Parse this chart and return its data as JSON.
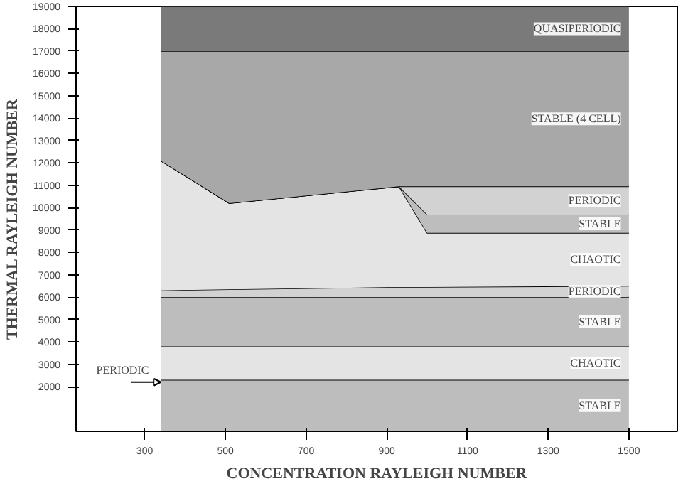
{
  "chart_data": {
    "type": "area",
    "stacked": true,
    "xlabel": "CONCENTRATION RAYLEIGH NUMBER",
    "ylabel": "THERMAL RAYLEIGH NUMBER",
    "x": [
      340,
      510,
      930,
      1000,
      1500
    ],
    "series": [
      {
        "name": "STABLE",
        "color": "#bdbdbd",
        "values": [
          2300,
          2300,
          2300,
          2300,
          2300
        ]
      },
      {
        "name": "CHAOTIC",
        "color": "#e4e4e4",
        "values": [
          1500,
          1500,
          1500,
          1500,
          1500
        ]
      },
      {
        "name": "STABLE",
        "color": "#bdbdbd",
        "values": [
          2200,
          2200,
          2200,
          2200,
          2200
        ]
      },
      {
        "name": "PERIODIC",
        "color": "#d2d2d2",
        "values": [
          300,
          350,
          450,
          450,
          500
        ]
      },
      {
        "name": "CHAOTIC",
        "color": "#e4e4e4",
        "values": [
          5800,
          3850,
          4500,
          2420,
          2370
        ]
      },
      {
        "name": "STABLE",
        "color": "#bdbdbd",
        "values": [
          0,
          0,
          0,
          820,
          820
        ]
      },
      {
        "name": "PERIODIC",
        "color": "#d2d2d2",
        "values": [
          0,
          0,
          0,
          1260,
          1260
        ]
      },
      {
        "name": "STABLE (4 CELL)",
        "color": "#a8a8a8",
        "values": [
          4900,
          6800,
          6050,
          6050,
          6050
        ]
      },
      {
        "name": "QUASIPERIODIC",
        "color": "#7a7a7a",
        "values": [
          2000,
          2000,
          2000,
          2000,
          2000
        ]
      }
    ],
    "xlim": [
      130,
      1620
    ],
    "ylim": [
      0,
      19000
    ],
    "xticks": [
      300,
      500,
      700,
      900,
      1100,
      1300,
      1500
    ],
    "yticks": [
      2000,
      3000,
      4000,
      5000,
      6000,
      7000,
      8000,
      9000,
      10000,
      11000,
      12000,
      13000,
      14000,
      15000,
      16000,
      17000,
      18000,
      19000
    ],
    "grid": false,
    "annotations": [
      {
        "text": "PERIODIC",
        "x": 340,
        "y": 2200
      }
    ]
  }
}
